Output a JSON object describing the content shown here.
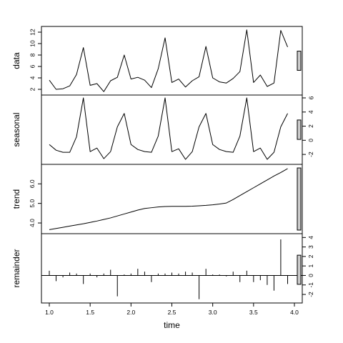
{
  "chart_data": {
    "type": "line",
    "xlabel": "time",
    "x": [
      1.0,
      1.083,
      1.167,
      1.25,
      1.333,
      1.417,
      1.5,
      1.583,
      1.667,
      1.75,
      1.833,
      1.917,
      2.0,
      2.083,
      2.167,
      2.25,
      2.333,
      2.417,
      2.5,
      2.583,
      2.667,
      2.75,
      2.833,
      2.917,
      3.0,
      3.083,
      3.167,
      3.25,
      3.333,
      3.417,
      3.5,
      3.583,
      3.667,
      3.75,
      3.833,
      3.917
    ],
    "xlim": [
      1.0,
      4.0
    ],
    "xticks": [
      "1.0",
      "1.5",
      "2.0",
      "2.5",
      "3.0",
      "3.5",
      "4.0"
    ],
    "panels": [
      {
        "name": "data",
        "kind": "line",
        "ylim": [
          1.5,
          12.5
        ],
        "yticks": [
          "2",
          "4",
          "6",
          "8",
          "10",
          "12"
        ],
        "tick_side": "left",
        "values": [
          3.6,
          2.0,
          2.1,
          2.6,
          4.6,
          9.3,
          2.7,
          3.0,
          1.6,
          3.5,
          4.1,
          8.0,
          3.8,
          4.1,
          3.6,
          2.3,
          5.6,
          11.0,
          3.2,
          3.8,
          2.4,
          3.5,
          4.2,
          9.5,
          4.0,
          3.3,
          3.1,
          3.9,
          5.1,
          12.4,
          3.2,
          4.5,
          2.5,
          3.1,
          12.3,
          9.4
        ]
      },
      {
        "name": "seasonal",
        "kind": "line",
        "ylim": [
          -3.0,
          6.0
        ],
        "yticks": [
          "-2",
          "0",
          "2",
          "4",
          "6"
        ],
        "tick_side": "right",
        "values": [
          -0.6,
          -1.4,
          -1.7,
          -1.7,
          0.5,
          6.0,
          -1.6,
          -1.1,
          -2.6,
          -1.6,
          1.9,
          3.8,
          -0.6,
          -1.3,
          -1.6,
          -1.7,
          0.6,
          6.0,
          -1.6,
          -1.2,
          -2.7,
          -1.6,
          1.9,
          3.8,
          -0.6,
          -1.3,
          -1.6,
          -1.7,
          0.6,
          6.0,
          -1.6,
          -1.1,
          -2.7,
          -1.7,
          1.9,
          3.8
        ]
      },
      {
        "name": "trend",
        "kind": "line",
        "ylim": [
          3.6,
          6.85
        ],
        "yticks": [
          "4.0",
          "5.0",
          "6.0"
        ],
        "tick_side": "left",
        "values": [
          3.66,
          3.72,
          3.78,
          3.84,
          3.9,
          3.96,
          4.03,
          4.1,
          4.18,
          4.26,
          4.36,
          4.46,
          4.56,
          4.66,
          4.74,
          4.78,
          4.82,
          4.84,
          4.85,
          4.85,
          4.85,
          4.86,
          4.88,
          4.9,
          4.93,
          4.97,
          5.02,
          5.2,
          5.4,
          5.6,
          5.8,
          6.0,
          6.2,
          6.4,
          6.58,
          6.78
        ]
      },
      {
        "name": "remainder",
        "kind": "spike",
        "ylim": [
          -2.6,
          4.1
        ],
        "yticks": [
          "-2",
          "-1",
          "0",
          "1",
          "2",
          "3",
          "4"
        ],
        "tick_side": "right",
        "values": [
          0.5,
          -0.6,
          -0.2,
          0.3,
          0.2,
          -0.9,
          0.2,
          -0.2,
          0.2,
          0.6,
          -2.2,
          0.1,
          0.2,
          0.7,
          0.4,
          -0.7,
          0.2,
          0.2,
          0.3,
          0.2,
          0.4,
          0.3,
          -2.5,
          0.7,
          0.1,
          0.1,
          -0.1,
          0.4,
          -0.7,
          0.5,
          -0.7,
          -0.5,
          -1.0,
          -1.6,
          3.8,
          -0.9
        ]
      }
    ],
    "range_bar_color": "#cccccc",
    "line_color": "#000000"
  }
}
